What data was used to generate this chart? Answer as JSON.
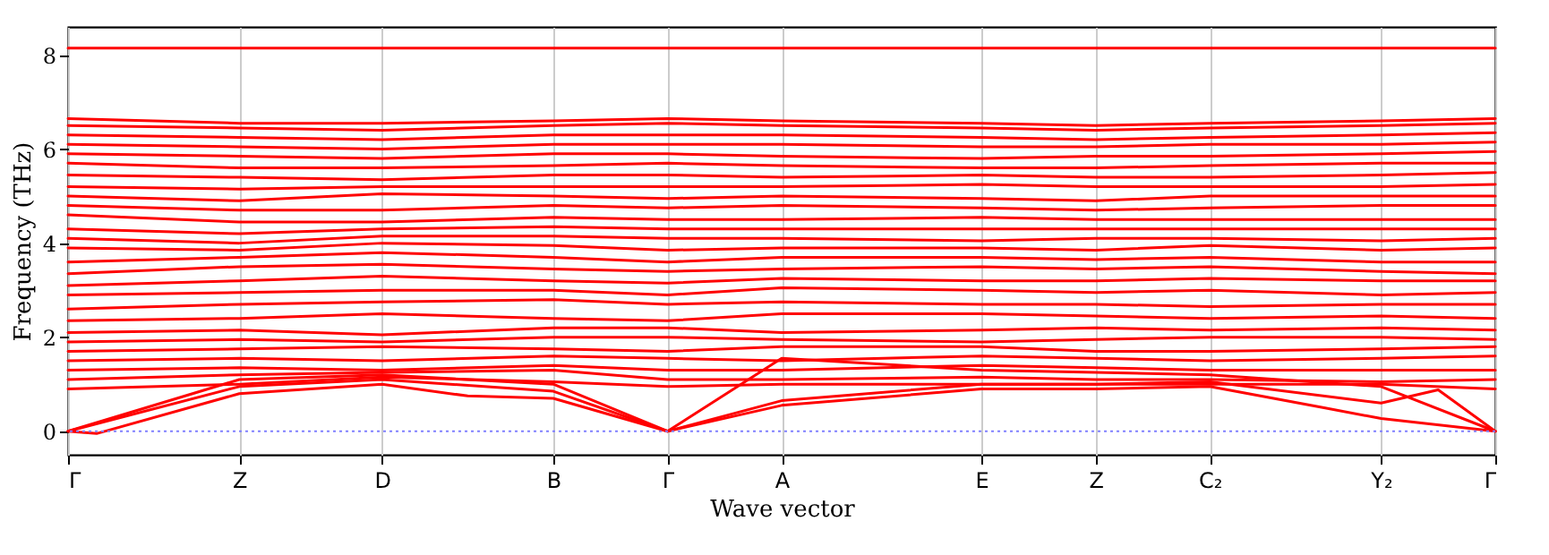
{
  "chart_data": {
    "type": "line",
    "xlabel": "Wave vector",
    "ylabel": "Frequency (THz)",
    "ylim": [
      -0.5,
      8.6
    ],
    "yticks": [
      0,
      2,
      4,
      6,
      8
    ],
    "grid": "x",
    "legend": false,
    "ref_lines": [
      {
        "axis": "y",
        "value": 0,
        "color": "#8080ff",
        "line_style": "dotted"
      }
    ],
    "categories": [
      "Γ",
      null,
      null,
      null,
      null,
      null,
      "Z",
      null,
      null,
      null,
      null,
      "D",
      null,
      null,
      null,
      null,
      null,
      "B",
      null,
      null,
      null,
      "Γ",
      null,
      null,
      null,
      "A",
      null,
      null,
      null,
      null,
      null,
      null,
      "E",
      null,
      null,
      null,
      "Z",
      null,
      null,
      null,
      "C₂",
      null,
      null,
      null,
      null,
      null,
      "Y₂",
      null,
      null,
      null,
      "Γ"
    ],
    "series": [
      {
        "color": "#ff0000",
        "values": [
          0,
          -0.05,
          null,
          null,
          null,
          null,
          0.8,
          null,
          null,
          null,
          null,
          1.0,
          null,
          null,
          0.75,
          null,
          null,
          0.7,
          null,
          null,
          null,
          0,
          null,
          null,
          null,
          0.55,
          null,
          null,
          null,
          null,
          null,
          null,
          0.9,
          null,
          null,
          null,
          0.9,
          null,
          null,
          null,
          0.95,
          null,
          null,
          null,
          0.5,
          null,
          0.27,
          null,
          null,
          null,
          0
        ]
      },
      {
        "color": "#ff0000",
        "values": [
          0,
          null,
          null,
          null,
          null,
          null,
          0.95,
          null,
          null,
          null,
          null,
          1.1,
          null,
          null,
          null,
          null,
          null,
          0.85,
          null,
          null,
          null,
          0,
          null,
          null,
          null,
          0.65,
          null,
          null,
          null,
          null,
          null,
          null,
          1.0,
          null,
          null,
          null,
          1.0,
          null,
          null,
          null,
          1.05,
          null,
          null,
          null,
          null,
          null,
          0.6,
          null,
          0.88,
          null,
          0
        ]
      },
      {
        "color": "#ff0000",
        "values": [
          0,
          null,
          null,
          null,
          null,
          null,
          1.1,
          null,
          null,
          null,
          null,
          1.2,
          null,
          null,
          null,
          null,
          null,
          1.0,
          null,
          null,
          null,
          0,
          null,
          null,
          null,
          1.55,
          null,
          null,
          null,
          null,
          null,
          null,
          1.3,
          null,
          null,
          null,
          1.25,
          null,
          null,
          null,
          1.2,
          null,
          null,
          null,
          null,
          null,
          0.95,
          null,
          null,
          null,
          0
        ]
      },
      {
        "color": "#ff0000",
        "values": [
          0.9,
          null,
          null,
          null,
          null,
          null,
          1.0,
          null,
          null,
          null,
          null,
          1.15,
          null,
          null,
          null,
          null,
          null,
          1.05,
          null,
          null,
          null,
          0.95,
          null,
          null,
          null,
          1.0,
          null,
          null,
          null,
          null,
          null,
          null,
          1.0,
          null,
          null,
          null,
          1.0,
          null,
          null,
          null,
          1.0,
          null,
          null,
          null,
          null,
          null,
          1.0,
          null,
          null,
          null,
          0.9
        ]
      },
      {
        "color": "#ff0000",
        "values": [
          1.1,
          null,
          null,
          null,
          null,
          null,
          1.2,
          null,
          null,
          null,
          null,
          1.25,
          null,
          null,
          null,
          null,
          null,
          1.3,
          null,
          null,
          null,
          1.1,
          null,
          null,
          null,
          1.1,
          null,
          null,
          null,
          null,
          null,
          null,
          1.15,
          null,
          null,
          null,
          1.1,
          null,
          null,
          null,
          1.1,
          null,
          null,
          null,
          null,
          null,
          1.05,
          null,
          null,
          null,
          1.1
        ]
      },
      {
        "color": "#ff0000",
        "values": [
          1.3,
          null,
          null,
          null,
          null,
          null,
          1.35,
          null,
          null,
          null,
          null,
          1.3,
          null,
          null,
          null,
          null,
          null,
          1.4,
          null,
          null,
          null,
          1.3,
          null,
          null,
          null,
          1.3,
          null,
          null,
          null,
          null,
          null,
          null,
          1.4,
          null,
          null,
          null,
          1.35,
          null,
          null,
          null,
          1.3,
          null,
          null,
          null,
          null,
          null,
          1.3,
          null,
          null,
          null,
          1.3
        ]
      },
      {
        "color": "#ff0000",
        "values": [
          1.5,
          null,
          null,
          null,
          null,
          null,
          1.55,
          null,
          null,
          null,
          null,
          1.5,
          null,
          null,
          null,
          null,
          null,
          1.6,
          null,
          null,
          null,
          1.55,
          null,
          null,
          null,
          1.5,
          null,
          null,
          null,
          null,
          null,
          null,
          1.6,
          null,
          null,
          null,
          1.55,
          null,
          null,
          null,
          1.5,
          null,
          null,
          null,
          null,
          null,
          1.55,
          null,
          null,
          null,
          1.6
        ]
      },
      {
        "color": "#ff0000",
        "values": [
          1.7,
          null,
          null,
          null,
          null,
          null,
          1.75,
          null,
          null,
          null,
          null,
          1.8,
          null,
          null,
          null,
          null,
          null,
          1.75,
          null,
          null,
          null,
          1.7,
          null,
          null,
          null,
          1.8,
          null,
          null,
          null,
          null,
          null,
          null,
          1.8,
          null,
          null,
          null,
          1.7,
          null,
          null,
          null,
          1.7,
          null,
          null,
          null,
          null,
          null,
          1.75,
          null,
          null,
          null,
          1.8
        ]
      },
      {
        "color": "#ff0000",
        "values": [
          1.9,
          null,
          null,
          null,
          null,
          null,
          1.95,
          null,
          null,
          null,
          null,
          1.9,
          null,
          null,
          null,
          null,
          null,
          2.0,
          null,
          null,
          null,
          2.0,
          null,
          null,
          null,
          1.95,
          null,
          null,
          null,
          null,
          null,
          null,
          1.9,
          null,
          null,
          null,
          1.95,
          null,
          null,
          null,
          2.0,
          null,
          null,
          null,
          null,
          null,
          2.0,
          null,
          null,
          null,
          1.95
        ]
      },
      {
        "color": "#ff0000",
        "values": [
          2.1,
          null,
          null,
          null,
          null,
          null,
          2.15,
          null,
          null,
          null,
          null,
          2.05,
          null,
          null,
          null,
          null,
          null,
          2.2,
          null,
          null,
          null,
          2.2,
          null,
          null,
          null,
          2.1,
          null,
          null,
          null,
          null,
          null,
          null,
          2.15,
          null,
          null,
          null,
          2.2,
          null,
          null,
          null,
          2.15,
          null,
          null,
          null,
          null,
          null,
          2.2,
          null,
          null,
          null,
          2.15
        ]
      },
      {
        "color": "#ff0000",
        "values": [
          2.35,
          null,
          null,
          null,
          null,
          null,
          2.4,
          null,
          null,
          null,
          null,
          2.5,
          null,
          null,
          null,
          null,
          null,
          2.4,
          null,
          null,
          null,
          2.35,
          null,
          null,
          null,
          2.5,
          null,
          null,
          null,
          null,
          null,
          null,
          2.5,
          null,
          null,
          null,
          2.45,
          null,
          null,
          null,
          2.4,
          null,
          null,
          null,
          null,
          null,
          2.45,
          null,
          null,
          null,
          2.4
        ]
      },
      {
        "color": "#ff0000",
        "values": [
          2.6,
          null,
          null,
          null,
          null,
          null,
          2.7,
          null,
          null,
          null,
          null,
          2.75,
          null,
          null,
          null,
          null,
          null,
          2.8,
          null,
          null,
          null,
          2.7,
          null,
          null,
          null,
          2.75,
          null,
          null,
          null,
          null,
          null,
          null,
          2.7,
          null,
          null,
          null,
          2.7,
          null,
          null,
          null,
          2.65,
          null,
          null,
          null,
          null,
          null,
          2.7,
          null,
          null,
          null,
          2.7
        ]
      },
      {
        "color": "#ff0000",
        "values": [
          2.9,
          null,
          null,
          null,
          null,
          null,
          2.95,
          null,
          null,
          null,
          null,
          3.0,
          null,
          null,
          null,
          null,
          null,
          3.0,
          null,
          null,
          null,
          2.9,
          null,
          null,
          null,
          3.05,
          null,
          null,
          null,
          null,
          null,
          null,
          3.0,
          null,
          null,
          null,
          2.95,
          null,
          null,
          null,
          3.0,
          null,
          null,
          null,
          null,
          null,
          2.9,
          null,
          null,
          null,
          2.95
        ]
      },
      {
        "color": "#ff0000",
        "values": [
          3.1,
          null,
          null,
          null,
          null,
          null,
          3.2,
          null,
          null,
          null,
          null,
          3.3,
          null,
          null,
          null,
          null,
          null,
          3.2,
          null,
          null,
          null,
          3.15,
          null,
          null,
          null,
          3.25,
          null,
          null,
          null,
          null,
          null,
          null,
          3.2,
          null,
          null,
          null,
          3.2,
          null,
          null,
          null,
          3.25,
          null,
          null,
          null,
          null,
          null,
          3.2,
          null,
          null,
          null,
          3.2
        ]
      },
      {
        "color": "#ff0000",
        "values": [
          3.35,
          null,
          null,
          null,
          null,
          null,
          3.5,
          null,
          null,
          null,
          null,
          3.55,
          null,
          null,
          null,
          null,
          null,
          3.45,
          null,
          null,
          null,
          3.4,
          null,
          null,
          null,
          3.45,
          null,
          null,
          null,
          null,
          null,
          null,
          3.5,
          null,
          null,
          null,
          3.45,
          null,
          null,
          null,
          3.5,
          null,
          null,
          null,
          null,
          null,
          3.4,
          null,
          null,
          null,
          3.35
        ]
      },
      {
        "color": "#ff0000",
        "values": [
          3.6,
          null,
          null,
          null,
          null,
          null,
          3.7,
          null,
          null,
          null,
          null,
          3.8,
          null,
          null,
          null,
          null,
          null,
          3.7,
          null,
          null,
          null,
          3.6,
          null,
          null,
          null,
          3.7,
          null,
          null,
          null,
          null,
          null,
          null,
          3.7,
          null,
          null,
          null,
          3.65,
          null,
          null,
          null,
          3.7,
          null,
          null,
          null,
          null,
          null,
          3.6,
          null,
          null,
          null,
          3.6
        ]
      },
      {
        "color": "#ff0000",
        "values": [
          3.9,
          null,
          null,
          null,
          null,
          null,
          3.85,
          null,
          null,
          null,
          null,
          4.0,
          null,
          null,
          null,
          null,
          null,
          3.95,
          null,
          null,
          null,
          3.85,
          null,
          null,
          null,
          3.9,
          null,
          null,
          null,
          null,
          null,
          null,
          3.9,
          null,
          null,
          null,
          3.85,
          null,
          null,
          null,
          3.95,
          null,
          null,
          null,
          null,
          null,
          3.85,
          null,
          null,
          null,
          3.9
        ]
      },
      {
        "color": "#ff0000",
        "values": [
          4.1,
          null,
          null,
          null,
          null,
          null,
          4.0,
          null,
          null,
          null,
          null,
          4.15,
          null,
          null,
          null,
          null,
          null,
          4.15,
          null,
          null,
          null,
          4.1,
          null,
          null,
          null,
          4.1,
          null,
          null,
          null,
          null,
          null,
          null,
          4.05,
          null,
          null,
          null,
          4.1,
          null,
          null,
          null,
          4.1,
          null,
          null,
          null,
          null,
          null,
          4.05,
          null,
          null,
          null,
          4.1
        ]
      },
      {
        "color": "#ff0000",
        "values": [
          4.3,
          null,
          null,
          null,
          null,
          null,
          4.2,
          null,
          null,
          null,
          null,
          4.3,
          null,
          null,
          null,
          null,
          null,
          4.35,
          null,
          null,
          null,
          4.3,
          null,
          null,
          null,
          4.3,
          null,
          null,
          null,
          null,
          null,
          null,
          4.3,
          null,
          null,
          null,
          4.3,
          null,
          null,
          null,
          4.3,
          null,
          null,
          null,
          null,
          null,
          4.3,
          null,
          null,
          null,
          4.3
        ]
      },
      {
        "color": "#ff0000",
        "values": [
          4.6,
          null,
          null,
          null,
          null,
          null,
          4.45,
          null,
          null,
          null,
          null,
          4.45,
          null,
          null,
          null,
          null,
          null,
          4.55,
          null,
          null,
          null,
          4.5,
          null,
          null,
          null,
          4.5,
          null,
          null,
          null,
          null,
          null,
          null,
          4.55,
          null,
          null,
          null,
          4.5,
          null,
          null,
          null,
          4.5,
          null,
          null,
          null,
          null,
          null,
          4.5,
          null,
          null,
          null,
          4.5
        ]
      },
      {
        "color": "#ff0000",
        "values": [
          4.8,
          null,
          null,
          null,
          null,
          null,
          4.7,
          null,
          null,
          null,
          null,
          4.7,
          null,
          null,
          null,
          null,
          null,
          4.8,
          null,
          null,
          null,
          4.75,
          null,
          null,
          null,
          4.8,
          null,
          null,
          null,
          null,
          null,
          null,
          4.75,
          null,
          null,
          null,
          4.7,
          null,
          null,
          null,
          4.75,
          null,
          null,
          null,
          null,
          null,
          4.8,
          null,
          null,
          null,
          4.8
        ]
      },
      {
        "color": "#ff0000",
        "values": [
          5.0,
          null,
          null,
          null,
          null,
          null,
          4.9,
          null,
          null,
          null,
          null,
          5.05,
          null,
          null,
          null,
          null,
          null,
          5.0,
          null,
          null,
          null,
          4.95,
          null,
          null,
          null,
          5.0,
          null,
          null,
          null,
          null,
          null,
          null,
          4.95,
          null,
          null,
          null,
          4.9,
          null,
          null,
          null,
          5.0,
          null,
          null,
          null,
          null,
          null,
          5.0,
          null,
          null,
          null,
          5.0
        ]
      },
      {
        "color": "#ff0000",
        "values": [
          5.2,
          null,
          null,
          null,
          null,
          null,
          5.15,
          null,
          null,
          null,
          null,
          5.2,
          null,
          null,
          null,
          null,
          null,
          5.2,
          null,
          null,
          null,
          5.2,
          null,
          null,
          null,
          5.2,
          null,
          null,
          null,
          null,
          null,
          null,
          5.25,
          null,
          null,
          null,
          5.2,
          null,
          null,
          null,
          5.2,
          null,
          null,
          null,
          null,
          null,
          5.2,
          null,
          null,
          null,
          5.25
        ]
      },
      {
        "color": "#ff0000",
        "values": [
          5.45,
          null,
          null,
          null,
          null,
          null,
          5.4,
          null,
          null,
          null,
          null,
          5.35,
          null,
          null,
          null,
          null,
          null,
          5.45,
          null,
          null,
          null,
          5.45,
          null,
          null,
          null,
          5.4,
          null,
          null,
          null,
          null,
          null,
          null,
          5.45,
          null,
          null,
          null,
          5.4,
          null,
          null,
          null,
          5.4,
          null,
          null,
          null,
          null,
          null,
          5.45,
          null,
          null,
          null,
          5.5
        ]
      },
      {
        "color": "#ff0000",
        "values": [
          5.7,
          null,
          null,
          null,
          null,
          null,
          5.6,
          null,
          null,
          null,
          null,
          5.6,
          null,
          null,
          null,
          null,
          null,
          5.65,
          null,
          null,
          null,
          5.7,
          null,
          null,
          null,
          5.65,
          null,
          null,
          null,
          null,
          null,
          null,
          5.6,
          null,
          null,
          null,
          5.6,
          null,
          null,
          null,
          5.65,
          null,
          null,
          null,
          null,
          null,
          5.7,
          null,
          null,
          null,
          5.7
        ]
      },
      {
        "color": "#ff0000",
        "values": [
          5.9,
          null,
          null,
          null,
          null,
          null,
          5.85,
          null,
          null,
          null,
          null,
          5.8,
          null,
          null,
          null,
          null,
          null,
          5.9,
          null,
          null,
          null,
          5.9,
          null,
          null,
          null,
          5.85,
          null,
          null,
          null,
          null,
          null,
          null,
          5.8,
          null,
          null,
          null,
          5.85,
          null,
          null,
          null,
          5.85,
          null,
          null,
          null,
          null,
          null,
          5.9,
          null,
          null,
          null,
          5.95
        ]
      },
      {
        "color": "#ff0000",
        "values": [
          6.1,
          null,
          null,
          null,
          null,
          null,
          6.05,
          null,
          null,
          null,
          null,
          6.0,
          null,
          null,
          null,
          null,
          null,
          6.1,
          null,
          null,
          null,
          6.1,
          null,
          null,
          null,
          6.1,
          null,
          null,
          null,
          null,
          null,
          null,
          6.05,
          null,
          null,
          null,
          6.05,
          null,
          null,
          null,
          6.1,
          null,
          null,
          null,
          null,
          null,
          6.1,
          null,
          null,
          null,
          6.15
        ]
      },
      {
        "color": "#ff0000",
        "values": [
          6.3,
          null,
          null,
          null,
          null,
          null,
          6.25,
          null,
          null,
          null,
          null,
          6.2,
          null,
          null,
          null,
          null,
          null,
          6.3,
          null,
          null,
          null,
          6.3,
          null,
          null,
          null,
          6.3,
          null,
          null,
          null,
          null,
          null,
          null,
          6.25,
          null,
          null,
          null,
          6.2,
          null,
          null,
          null,
          6.25,
          null,
          null,
          null,
          null,
          null,
          6.3,
          null,
          null,
          null,
          6.35
        ]
      },
      {
        "color": "#ff0000",
        "values": [
          6.5,
          null,
          null,
          null,
          null,
          null,
          6.45,
          null,
          null,
          null,
          null,
          6.4,
          null,
          null,
          null,
          null,
          null,
          6.5,
          null,
          null,
          null,
          6.55,
          null,
          null,
          null,
          6.5,
          null,
          null,
          null,
          null,
          null,
          null,
          6.45,
          null,
          null,
          null,
          6.4,
          null,
          null,
          null,
          6.45,
          null,
          null,
          null,
          null,
          null,
          6.5,
          null,
          null,
          null,
          6.55
        ]
      },
      {
        "color": "#ff0000",
        "values": [
          6.65,
          null,
          null,
          null,
          null,
          null,
          6.55,
          null,
          null,
          null,
          null,
          6.55,
          null,
          null,
          null,
          null,
          null,
          6.6,
          null,
          null,
          null,
          6.65,
          null,
          null,
          null,
          6.6,
          null,
          null,
          null,
          null,
          null,
          null,
          6.55,
          null,
          null,
          null,
          6.5,
          null,
          null,
          null,
          6.55,
          null,
          null,
          null,
          null,
          null,
          6.6,
          null,
          null,
          null,
          6.65
        ]
      },
      {
        "color": "#ff0000",
        "values": [
          8.15,
          null,
          null,
          null,
          null,
          null,
          8.15,
          null,
          null,
          null,
          null,
          8.15,
          null,
          null,
          null,
          null,
          null,
          8.15,
          null,
          null,
          null,
          8.15,
          null,
          null,
          null,
          8.15,
          null,
          null,
          null,
          null,
          null,
          null,
          8.15,
          null,
          null,
          null,
          8.15,
          null,
          null,
          null,
          8.15,
          null,
          null,
          null,
          null,
          null,
          8.15,
          null,
          null,
          null,
          8.15
        ]
      }
    ]
  }
}
